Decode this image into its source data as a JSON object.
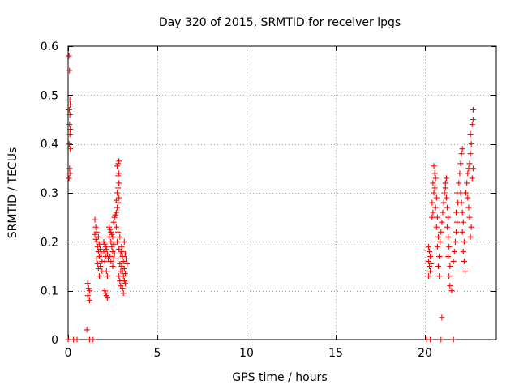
{
  "chart_data": {
    "type": "scatter",
    "title": "Day 320 of 2015, SRMTID for receiver lpgs",
    "xlabel": "GPS time / hours",
    "ylabel": "SRMTID / TECUs",
    "xlim": [
      0,
      24
    ],
    "ylim": [
      0,
      0.6
    ],
    "xticks": [
      0,
      5,
      10,
      15,
      20
    ],
    "xtick_labels": [
      "0",
      "5",
      "10",
      "15",
      "20"
    ],
    "yticks": [
      0,
      0.1,
      0.2,
      0.3,
      0.4,
      0.5,
      0.6
    ],
    "ytick_labels": [
      "0",
      "0.1",
      "0.2",
      "0.3",
      "0.4",
      "0.5",
      "0.6"
    ],
    "grid": true,
    "marker": "+",
    "series": [
      {
        "name": "SRMTID",
        "color": "#ff0000",
        "points": [
          [
            0.05,
            0.58
          ],
          [
            0.08,
            0.55
          ],
          [
            0.1,
            0.49
          ],
          [
            0.12,
            0.48
          ],
          [
            0.06,
            0.47
          ],
          [
            0.1,
            0.46
          ],
          [
            0.08,
            0.44
          ],
          [
            0.12,
            0.43
          ],
          [
            0.1,
            0.42
          ],
          [
            0.06,
            0.4
          ],
          [
            0.12,
            0.39
          ],
          [
            0.08,
            0.35
          ],
          [
            0.1,
            0.34
          ],
          [
            0.05,
            0.33
          ],
          [
            0.0,
            0.0
          ],
          [
            0.3,
            0.0
          ],
          [
            0.5,
            0.0
          ],
          [
            1.1,
            0.115
          ],
          [
            1.15,
            0.105
          ],
          [
            1.2,
            0.1
          ],
          [
            1.1,
            0.09
          ],
          [
            1.2,
            0.08
          ],
          [
            1.05,
            0.02
          ],
          [
            1.2,
            0.0
          ],
          [
            1.4,
            0.0
          ],
          [
            1.5,
            0.245
          ],
          [
            1.55,
            0.23
          ],
          [
            1.6,
            0.22
          ],
          [
            1.5,
            0.215
          ],
          [
            1.7,
            0.21
          ],
          [
            1.55,
            0.205
          ],
          [
            1.6,
            0.2
          ],
          [
            1.75,
            0.195
          ],
          [
            1.65,
            0.19
          ],
          [
            1.8,
            0.185
          ],
          [
            1.7,
            0.18
          ],
          [
            1.85,
            0.175
          ],
          [
            1.75,
            0.17
          ],
          [
            1.6,
            0.165
          ],
          [
            1.9,
            0.16
          ],
          [
            1.65,
            0.155
          ],
          [
            1.8,
            0.15
          ],
          [
            1.7,
            0.145
          ],
          [
            1.9,
            0.14
          ],
          [
            1.75,
            0.13
          ],
          [
            2.0,
            0.2
          ],
          [
            2.05,
            0.195
          ],
          [
            2.1,
            0.19
          ],
          [
            2.15,
            0.185
          ],
          [
            2.0,
            0.18
          ],
          [
            2.2,
            0.175
          ],
          [
            2.1,
            0.17
          ],
          [
            2.25,
            0.165
          ],
          [
            2.05,
            0.16
          ],
          [
            2.3,
            0.21
          ],
          [
            2.15,
            0.14
          ],
          [
            2.2,
            0.13
          ],
          [
            2.05,
            0.1
          ],
          [
            2.1,
            0.095
          ],
          [
            2.15,
            0.09
          ],
          [
            2.2,
            0.085
          ],
          [
            2.3,
            0.23
          ],
          [
            2.35,
            0.225
          ],
          [
            2.4,
            0.22
          ],
          [
            2.45,
            0.215
          ],
          [
            2.5,
            0.21
          ],
          [
            2.4,
            0.2
          ],
          [
            2.55,
            0.195
          ],
          [
            2.45,
            0.19
          ],
          [
            2.5,
            0.18
          ],
          [
            2.6,
            0.175
          ],
          [
            2.35,
            0.17
          ],
          [
            2.55,
            0.165
          ],
          [
            2.4,
            0.16
          ],
          [
            2.5,
            0.15
          ],
          [
            2.6,
            0.25
          ],
          [
            2.55,
            0.24
          ],
          [
            2.7,
            0.26
          ],
          [
            2.65,
            0.255
          ],
          [
            2.75,
            0.27
          ],
          [
            2.8,
            0.28
          ],
          [
            2.7,
            0.285
          ],
          [
            2.85,
            0.29
          ],
          [
            2.75,
            0.3
          ],
          [
            2.8,
            0.31
          ],
          [
            2.85,
            0.32
          ],
          [
            2.8,
            0.335
          ],
          [
            2.85,
            0.34
          ],
          [
            2.75,
            0.355
          ],
          [
            2.8,
            0.36
          ],
          [
            2.85,
            0.365
          ],
          [
            2.7,
            0.23
          ],
          [
            2.8,
            0.22
          ],
          [
            2.9,
            0.21
          ],
          [
            2.75,
            0.2
          ],
          [
            2.85,
            0.185
          ],
          [
            2.95,
            0.175
          ],
          [
            2.8,
            0.165
          ],
          [
            2.9,
            0.155
          ],
          [
            2.95,
            0.14
          ],
          [
            2.85,
            0.13
          ],
          [
            2.9,
            0.12
          ],
          [
            2.95,
            0.11
          ],
          [
            3.0,
            0.18
          ],
          [
            3.05,
            0.17
          ],
          [
            3.1,
            0.16
          ],
          [
            3.0,
            0.15
          ],
          [
            3.15,
            0.145
          ],
          [
            3.05,
            0.14
          ],
          [
            3.2,
            0.135
          ],
          [
            3.1,
            0.13
          ],
          [
            3.15,
            0.12
          ],
          [
            3.2,
            0.115
          ],
          [
            3.05,
            0.105
          ],
          [
            3.1,
            0.095
          ],
          [
            3.0,
            0.19
          ],
          [
            3.15,
            0.2
          ],
          [
            3.2,
            0.175
          ],
          [
            3.25,
            0.165
          ],
          [
            3.3,
            0.155
          ],
          [
            20.1,
            0.0
          ],
          [
            20.3,
            0.0
          ],
          [
            20.9,
            0.0
          ],
          [
            21.6,
            0.0
          ],
          [
            20.2,
            0.19
          ],
          [
            20.25,
            0.18
          ],
          [
            20.3,
            0.17
          ],
          [
            20.2,
            0.16
          ],
          [
            20.35,
            0.155
          ],
          [
            20.25,
            0.15
          ],
          [
            20.3,
            0.14
          ],
          [
            20.2,
            0.13
          ],
          [
            20.4,
            0.25
          ],
          [
            20.45,
            0.26
          ],
          [
            20.4,
            0.28
          ],
          [
            20.5,
            0.3
          ],
          [
            20.45,
            0.32
          ],
          [
            20.55,
            0.34
          ],
          [
            20.5,
            0.355
          ],
          [
            20.6,
            0.33
          ],
          [
            20.55,
            0.31
          ],
          [
            20.65,
            0.29
          ],
          [
            20.6,
            0.27
          ],
          [
            20.7,
            0.25
          ],
          [
            20.65,
            0.23
          ],
          [
            20.75,
            0.21
          ],
          [
            20.7,
            0.19
          ],
          [
            20.8,
            0.17
          ],
          [
            20.75,
            0.15
          ],
          [
            20.8,
            0.13
          ],
          [
            20.85,
            0.2
          ],
          [
            20.9,
            0.22
          ],
          [
            20.95,
            0.24
          ],
          [
            21.0,
            0.26
          ],
          [
            20.95,
            0.045
          ],
          [
            21.05,
            0.28
          ],
          [
            21.1,
            0.3
          ],
          [
            21.15,
            0.32
          ],
          [
            21.2,
            0.33
          ],
          [
            21.15,
            0.31
          ],
          [
            21.2,
            0.29
          ],
          [
            21.25,
            0.27
          ],
          [
            21.3,
            0.25
          ],
          [
            21.25,
            0.23
          ],
          [
            21.3,
            0.21
          ],
          [
            21.35,
            0.19
          ],
          [
            21.3,
            0.17
          ],
          [
            21.4,
            0.15
          ],
          [
            21.35,
            0.13
          ],
          [
            21.4,
            0.11
          ],
          [
            21.5,
            0.1
          ],
          [
            21.6,
            0.16
          ],
          [
            21.65,
            0.18
          ],
          [
            21.7,
            0.2
          ],
          [
            21.75,
            0.22
          ],
          [
            21.8,
            0.24
          ],
          [
            21.75,
            0.26
          ],
          [
            21.85,
            0.28
          ],
          [
            21.8,
            0.3
          ],
          [
            21.9,
            0.32
          ],
          [
            21.95,
            0.34
          ],
          [
            22.0,
            0.36
          ],
          [
            22.05,
            0.38
          ],
          [
            22.1,
            0.39
          ],
          [
            22.0,
            0.3
          ],
          [
            22.05,
            0.28
          ],
          [
            22.1,
            0.26
          ],
          [
            22.15,
            0.24
          ],
          [
            22.1,
            0.22
          ],
          [
            22.2,
            0.2
          ],
          [
            22.15,
            0.18
          ],
          [
            22.2,
            0.16
          ],
          [
            22.25,
            0.14
          ],
          [
            22.3,
            0.3
          ],
          [
            22.35,
            0.32
          ],
          [
            22.4,
            0.34
          ],
          [
            22.45,
            0.35
          ],
          [
            22.5,
            0.36
          ],
          [
            22.55,
            0.38
          ],
          [
            22.6,
            0.4
          ],
          [
            22.55,
            0.42
          ],
          [
            22.65,
            0.44
          ],
          [
            22.7,
            0.45
          ],
          [
            22.7,
            0.47
          ],
          [
            22.4,
            0.29
          ],
          [
            22.45,
            0.27
          ],
          [
            22.5,
            0.25
          ],
          [
            22.6,
            0.23
          ],
          [
            22.55,
            0.21
          ],
          [
            22.65,
            0.33
          ],
          [
            22.7,
            0.35
          ]
        ]
      }
    ]
  }
}
